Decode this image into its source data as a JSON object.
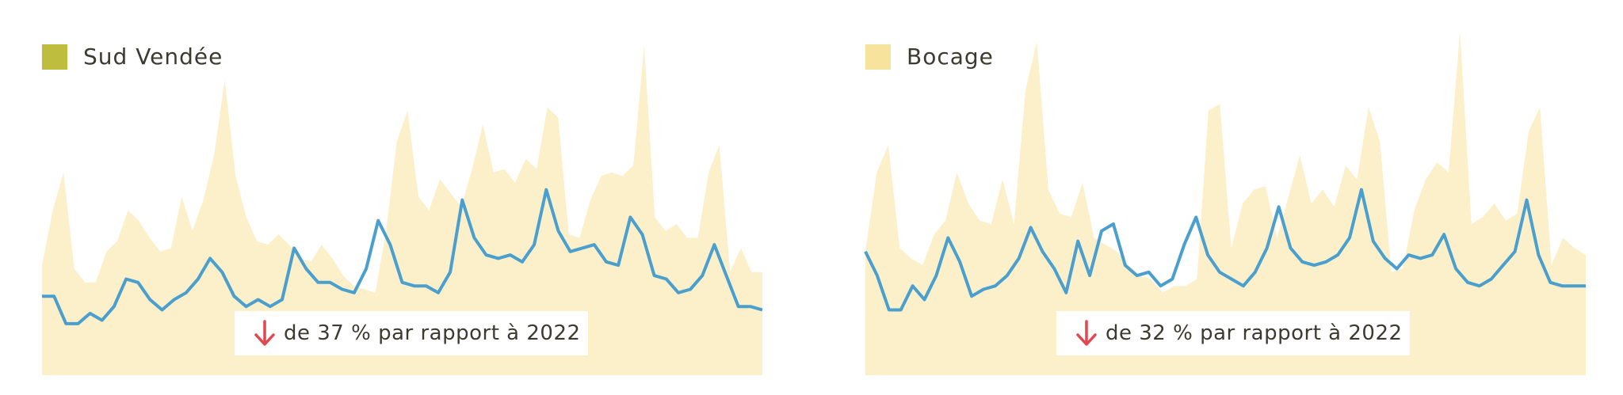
{
  "colors": {
    "area_fill": "#fbf0c9",
    "line": "#4a9fcf",
    "swatch_sud_vendee": "#bebd3d",
    "swatch_bocage": "#f8e39c",
    "arrow": "#e0474f",
    "text": "#3d3a30"
  },
  "chart_data": [
    {
      "type": "area",
      "region": "Sud Vendée",
      "swatch_color": "#bebd3d",
      "ylim": [
        0,
        100
      ],
      "grid": false,
      "series": [
        {
          "name": "Sud Vendée",
          "kind": "area",
          "values": [
            32,
            48,
            59,
            31,
            27,
            27,
            36,
            39,
            48,
            45,
            40,
            36,
            37,
            52,
            42,
            51,
            64,
            86,
            58,
            46,
            39,
            38,
            41,
            38,
            34,
            33,
            38,
            34,
            29,
            26,
            25,
            24,
            42,
            68,
            77,
            52,
            48,
            57,
            53,
            49,
            60,
            73,
            59,
            60,
            56,
            63,
            60,
            78,
            75,
            41,
            40,
            51,
            58,
            59,
            58,
            61,
            96,
            46,
            42,
            44,
            40,
            40,
            59,
            67,
            30,
            37,
            30,
            30
          ]
        },
        {
          "kind": "line",
          "values": [
            23,
            23,
            15,
            15,
            18,
            16,
            20,
            28,
            27,
            22,
            19,
            22,
            24,
            28,
            34,
            30,
            23,
            20,
            22,
            20,
            22,
            37,
            31,
            27,
            27,
            25,
            24,
            31,
            45,
            38,
            27,
            26,
            26,
            24,
            30,
            51,
            40,
            35,
            34,
            35,
            33,
            38,
            54,
            42,
            36,
            37,
            38,
            33,
            32,
            46,
            41,
            29,
            28,
            24,
            25,
            29,
            38,
            29,
            20,
            20,
            19
          ]
        }
      ],
      "annotation": {
        "arrow": "down",
        "text": "de 37 % par rapport à 2022"
      }
    },
    {
      "type": "area",
      "region": "Bocage",
      "swatch_color": "#f8e39c",
      "ylim": [
        0,
        100
      ],
      "grid": false,
      "series": [
        {
          "name": "Bocage",
          "kind": "area",
          "values": [
            36,
            59,
            67,
            37,
            34,
            32,
            41,
            45,
            59,
            50,
            45,
            44,
            57,
            44,
            83,
            97,
            54,
            47,
            46,
            56,
            40,
            38,
            36,
            32,
            29,
            28,
            24,
            26,
            26,
            28,
            77,
            79,
            37,
            50,
            54,
            55,
            40,
            52,
            64,
            50,
            54,
            49,
            61,
            57,
            78,
            68,
            30,
            31,
            48,
            57,
            62,
            59,
            100,
            44,
            46,
            50,
            45,
            47,
            71,
            78,
            32,
            40,
            37,
            35
          ]
        },
        {
          "kind": "line",
          "values": [
            36,
            29,
            19,
            19,
            26,
            22,
            29,
            40,
            33,
            23,
            25,
            26,
            29,
            34,
            43,
            36,
            31,
            24,
            39,
            29,
            42,
            44,
            32,
            29,
            30,
            26,
            28,
            38,
            46,
            35,
            30,
            28,
            26,
            30,
            37,
            49,
            37,
            33,
            32,
            33,
            35,
            40,
            54,
            39,
            34,
            31,
            35,
            34,
            35,
            41,
            31,
            27,
            26,
            28,
            32,
            36,
            51,
            35,
            27,
            26,
            26,
            26
          ]
        }
      ],
      "annotation": {
        "arrow": "down",
        "text": "de 32 % par rapport à 2022"
      }
    }
  ]
}
